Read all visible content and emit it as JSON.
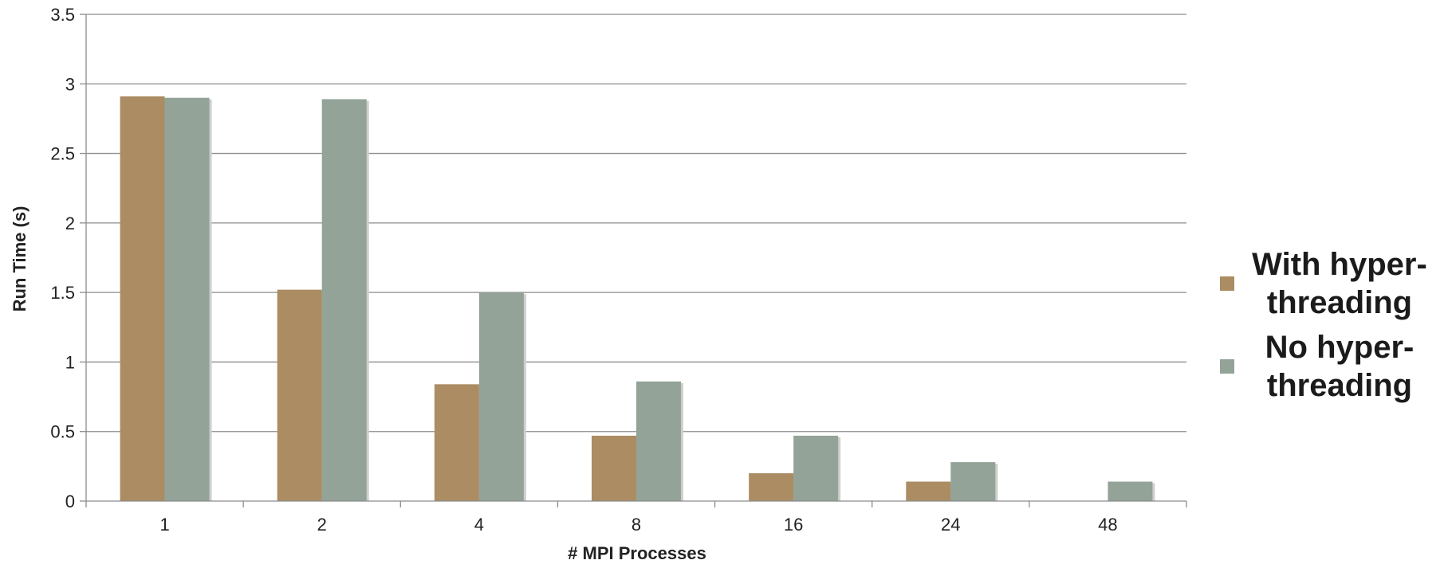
{
  "chart_data": {
    "type": "bar",
    "title": "",
    "xlabel": "# MPI Processes",
    "ylabel": "Run Time (s)",
    "categories": [
      "1",
      "2",
      "4",
      "8",
      "16",
      "24",
      "48"
    ],
    "ylim": [
      0,
      3.5
    ],
    "yticks": [
      "0",
      "0.5",
      "1",
      "1.5",
      "2",
      "2.5",
      "3",
      "3.5"
    ],
    "grid": true,
    "legend_position": "right",
    "series": [
      {
        "name": "With hyper-threading",
        "color": "#ac8c63",
        "values": [
          2.91,
          1.52,
          0.84,
          0.47,
          0.2,
          0.14,
          null
        ]
      },
      {
        "name": "No hyper-threading",
        "color": "#93a398",
        "values": [
          2.9,
          2.89,
          1.5,
          0.86,
          0.47,
          0.28,
          0.14
        ]
      }
    ]
  }
}
